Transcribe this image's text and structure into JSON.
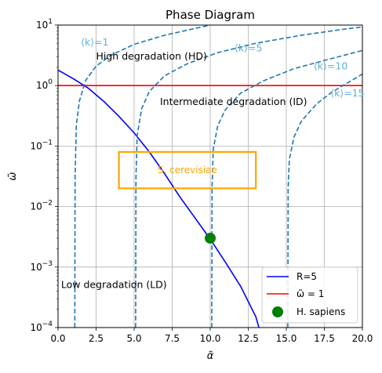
{
  "chart_data": {
    "type": "line",
    "title": "Phase Diagram",
    "xlabel": "α̃",
    "ylabel": "ω̃",
    "xlim": [
      0,
      20
    ],
    "ylim": [
      0.0001,
      10
    ],
    "yscale": "log",
    "grid": true,
    "legend_position": "lower-right",
    "x_ticks": [
      0,
      2.5,
      5,
      7.5,
      10,
      12.5,
      15,
      17.5,
      20
    ],
    "x_tick_labels": [
      "0.0",
      "2.5",
      "5.0",
      "7.5",
      "10.0",
      "12.5",
      "15.0",
      "17.5",
      "20.0"
    ],
    "y_ticks": [
      0.0001,
      0.001,
      0.01,
      0.1,
      1,
      10
    ],
    "y_tick_labels": [
      {
        "base": "10",
        "exp": "−4"
      },
      {
        "base": "10",
        "exp": "−3"
      },
      {
        "base": "10",
        "exp": "−2"
      },
      {
        "base": "10",
        "exp": "−1"
      },
      {
        "base": "10",
        "exp": "0"
      },
      {
        "base": "10",
        "exp": "1"
      }
    ],
    "legend": [
      {
        "label": "R=5",
        "kind": "line",
        "color": "#0000ff"
      },
      {
        "label": "ω̃ = 1",
        "kind": "line",
        "color": "#ff0000"
      },
      {
        "label": "H. sapiens",
        "kind": "marker",
        "color": "#008000"
      }
    ],
    "series": [
      {
        "name": "R=5",
        "style": "solid",
        "color": "#0000ff",
        "points": [
          [
            0,
            1.8
          ],
          [
            1,
            1.3
          ],
          [
            2,
            0.9
          ],
          [
            3,
            0.55
          ],
          [
            4,
            0.31
          ],
          [
            5,
            0.165
          ],
          [
            6,
            0.08
          ],
          [
            7,
            0.035
          ],
          [
            8,
            0.0145
          ],
          [
            9,
            0.0065
          ],
          [
            10,
            0.0029
          ],
          [
            11,
            0.0012
          ],
          [
            12,
            0.00048
          ],
          [
            13,
            0.00015
          ],
          [
            13.2,
            0.0001
          ]
        ]
      },
      {
        "name": "ω̃ = 1",
        "style": "solid",
        "color": "#ff0000",
        "points": [
          [
            0,
            1
          ],
          [
            20,
            1
          ]
        ]
      },
      {
        "name": "⟨k⟩=1",
        "style": "dashed",
        "color": "#1f77b4",
        "asymptote": 1.1,
        "points": [
          [
            1.1,
            0.0001
          ],
          [
            1.12,
            0.03
          ],
          [
            1.2,
            0.22
          ],
          [
            1.4,
            0.55
          ],
          [
            1.8,
            1.2
          ],
          [
            2.5,
            2.1
          ],
          [
            3.5,
            3.2
          ],
          [
            5,
            4.8
          ],
          [
            7,
            6.8
          ],
          [
            10,
            10
          ]
        ]
      },
      {
        "name": "⟨k⟩=5",
        "style": "dashed",
        "color": "#1f77b4",
        "asymptote": 5.1,
        "points": [
          [
            5.1,
            0.0001
          ],
          [
            5.12,
            0.03
          ],
          [
            5.2,
            0.15
          ],
          [
            5.5,
            0.42
          ],
          [
            6,
            0.8
          ],
          [
            7,
            1.45
          ],
          [
            8.5,
            2.3
          ],
          [
            10.5,
            3.5
          ],
          [
            13,
            5
          ],
          [
            16,
            6.8
          ],
          [
            19,
            8.7
          ],
          [
            20,
            9.3
          ]
        ]
      },
      {
        "name": "⟨k⟩=10",
        "style": "dashed",
        "color": "#1f77b4",
        "asymptote": 10.1,
        "points": [
          [
            10.1,
            0.0001
          ],
          [
            10.12,
            0.02
          ],
          [
            10.2,
            0.09
          ],
          [
            10.5,
            0.22
          ],
          [
            11,
            0.4
          ],
          [
            12,
            0.75
          ],
          [
            13.5,
            1.2
          ],
          [
            15.5,
            1.9
          ],
          [
            17.5,
            2.6
          ],
          [
            20,
            3.8
          ]
        ]
      },
      {
        "name": "⟨k⟩=15",
        "style": "dashed",
        "color": "#1f77b4",
        "asymptote": 15.1,
        "points": [
          [
            15.1,
            0.0001
          ],
          [
            15.12,
            0.02
          ],
          [
            15.2,
            0.06
          ],
          [
            15.5,
            0.14
          ],
          [
            16,
            0.26
          ],
          [
            17,
            0.5
          ],
          [
            18,
            0.78
          ],
          [
            19,
            1.1
          ],
          [
            20,
            1.55
          ]
        ]
      }
    ],
    "region": {
      "label": "S. cerevisiae",
      "color": "#ffa500",
      "x": [
        4,
        13
      ],
      "y": [
        0.02,
        0.08
      ]
    },
    "point": {
      "label": "H. sapiens",
      "color": "#008000",
      "x": 10.0,
      "y": 0.003
    },
    "annotations": [
      {
        "id": "hd",
        "text": "High degradation (HD)",
        "x": 2.5,
        "y": 2.7,
        "color": "#000000",
        "anchor": "start"
      },
      {
        "id": "id",
        "text": "Intermediate degradation (ID)",
        "x": 6.7,
        "y": 0.48,
        "color": "#000000",
        "anchor": "start"
      },
      {
        "id": "ld",
        "text": "Low degradation (LD)",
        "x": 0.2,
        "y": 0.00045,
        "color": "#000000",
        "anchor": "start"
      },
      {
        "id": "k1",
        "text": "⟨k⟩=1",
        "x": 1.5,
        "y": 4.6,
        "color": "#5fb0d8",
        "anchor": "start"
      },
      {
        "id": "k5",
        "text": "⟨k⟩=5",
        "x": 11.6,
        "y": 3.7,
        "color": "#5fb0d8",
        "anchor": "start"
      },
      {
        "id": "k10",
        "text": "⟨k⟩=10",
        "x": 16.8,
        "y": 1.85,
        "color": "#5fb0d8",
        "anchor": "start"
      },
      {
        "id": "k15",
        "text": "⟨k⟩=15",
        "x": 17.9,
        "y": 0.66,
        "color": "#5fb0d8",
        "anchor": "start"
      }
    ]
  }
}
